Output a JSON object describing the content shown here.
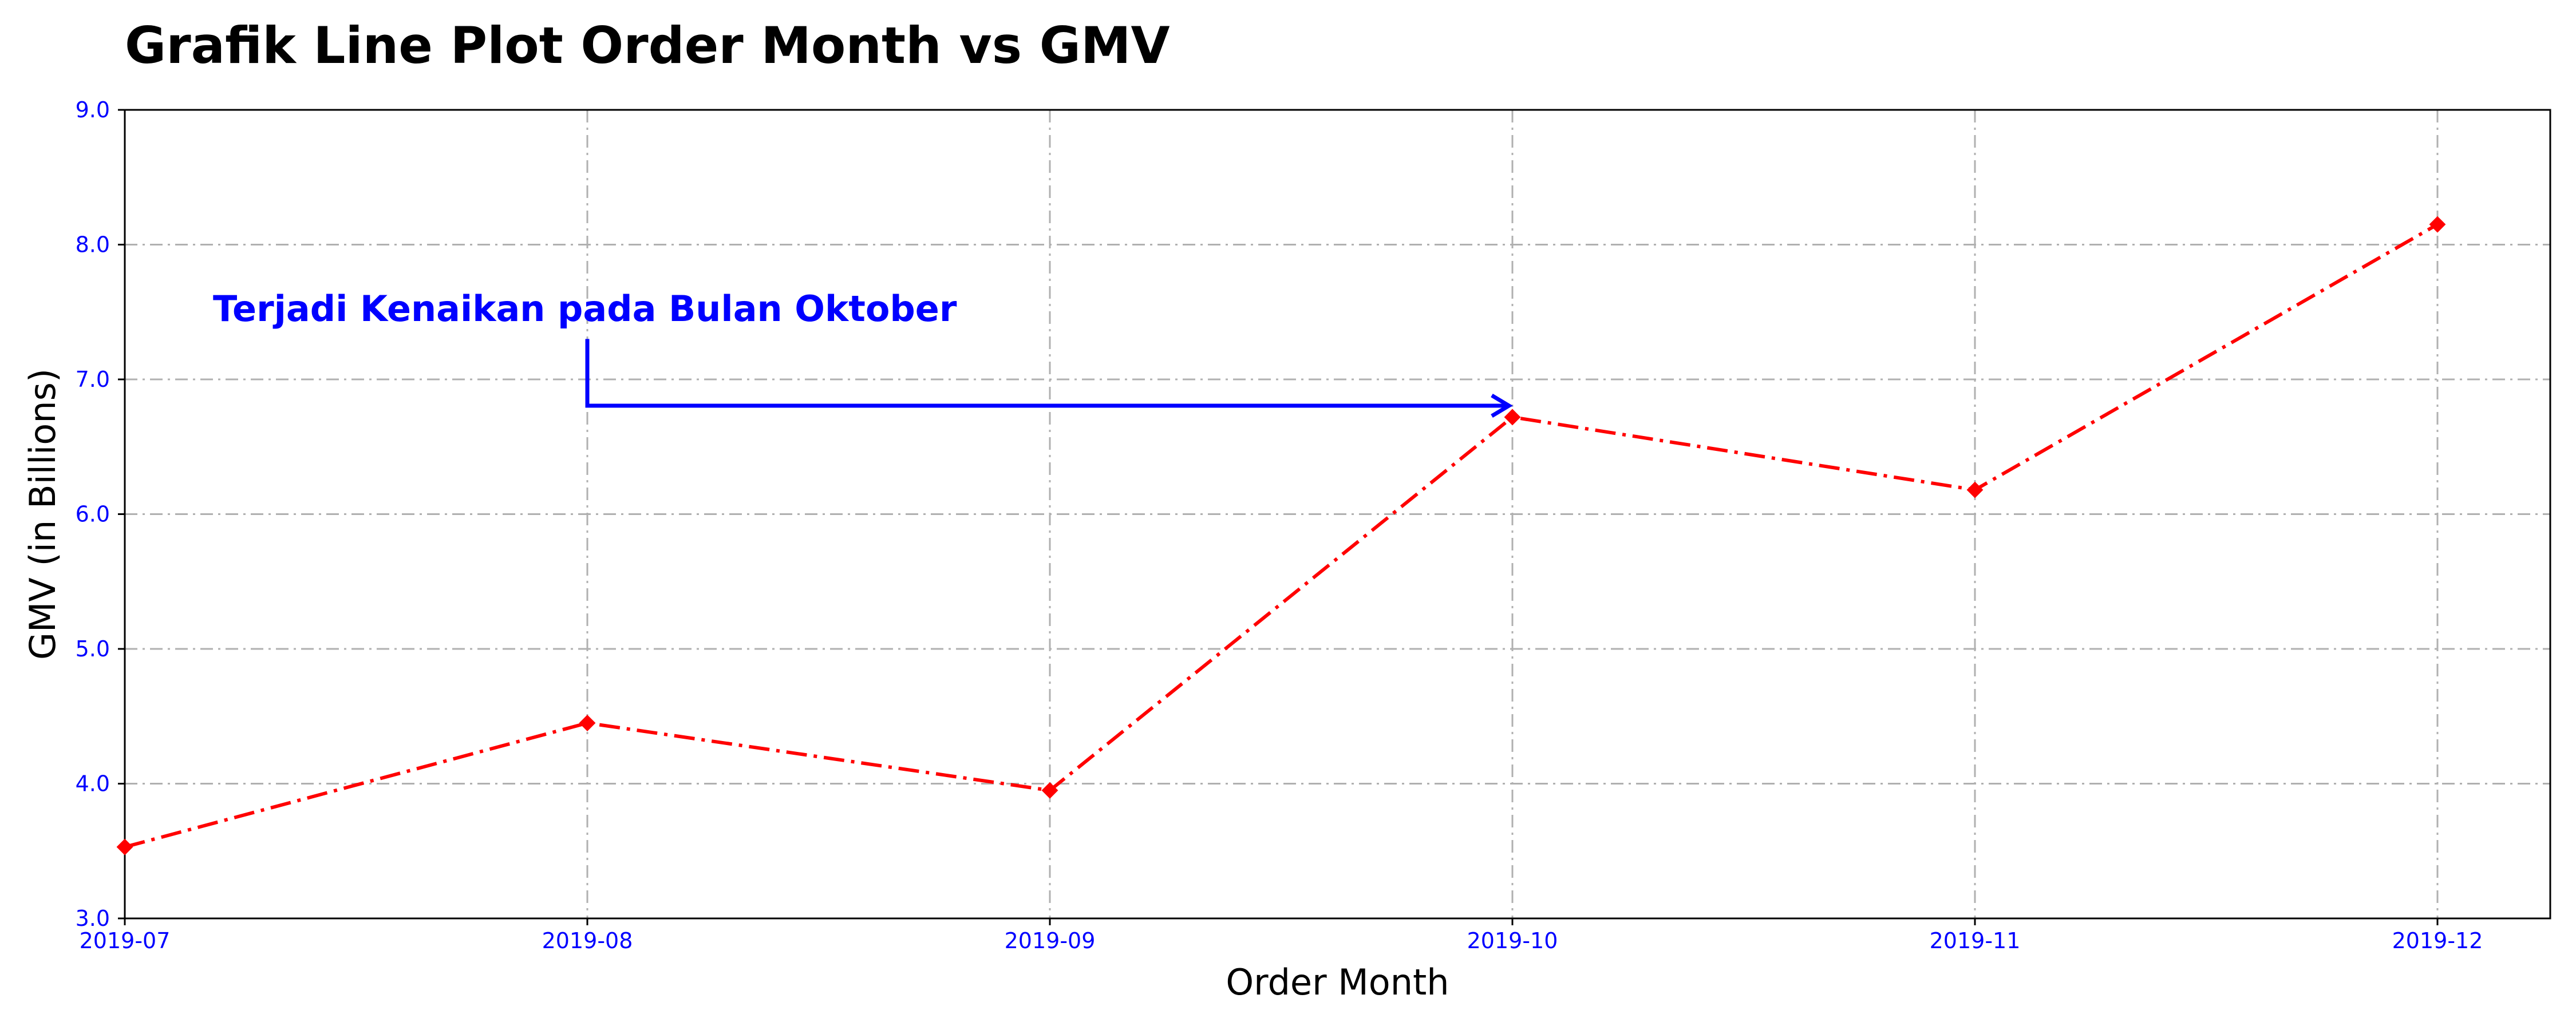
{
  "chart_data": {
    "type": "line",
    "title": "Grafik Line Plot Order Month vs GMV",
    "xlabel": "Order Month",
    "ylabel": "GMV (in Billions)",
    "categories": [
      "2019-07",
      "2019-08",
      "2019-09",
      "2019-10",
      "2019-11",
      "2019-12"
    ],
    "series": [
      {
        "values": [
          3.53,
          4.45,
          3.95,
          6.72,
          6.18,
          8.15
        ]
      }
    ],
    "ylim": [
      3.0,
      9.0
    ],
    "yticks": [
      "3.0",
      "4.0",
      "5.0",
      "6.0",
      "7.0",
      "8.0",
      "9.0"
    ],
    "grid": true,
    "line_style": "dash-dot",
    "marker": "diamond",
    "colors": {
      "line": "#ff0000",
      "ticks": "#0000ff",
      "annotation": "#0000ff",
      "grid": "#b0b0b0"
    },
    "annotation": {
      "text": "Terjadi Kenaikan pada Bulan Oktober",
      "from": {
        "x": "2019-08",
        "y": 7.3
      },
      "to": {
        "x": "2019-10",
        "y": 6.72
      }
    }
  }
}
